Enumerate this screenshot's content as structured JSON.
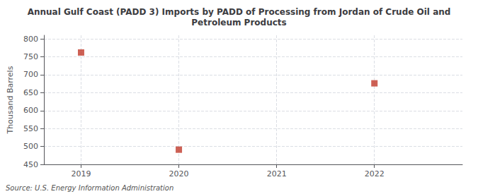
{
  "chart_data": {
    "type": "scatter",
    "title": "Annual Gulf Coast (PADD 3) Imports by PADD of Processing from Jordan of Crude Oil and\nPetroleum Products",
    "ylabel": "Thousand Barrels",
    "source": "Source: U.S. Energy Information Administration",
    "x": [
      2019,
      2020,
      2022
    ],
    "values": [
      762,
      491,
      676
    ],
    "xlim": [
      2018.62,
      2022.9
    ],
    "xticks": [
      2019,
      2020,
      2021,
      2022
    ],
    "ylim": [
      450,
      810
    ],
    "yticks": [
      450,
      500,
      550,
      600,
      650,
      700,
      750,
      800
    ],
    "color": "#c0392b",
    "marker": "square",
    "grid": true
  }
}
